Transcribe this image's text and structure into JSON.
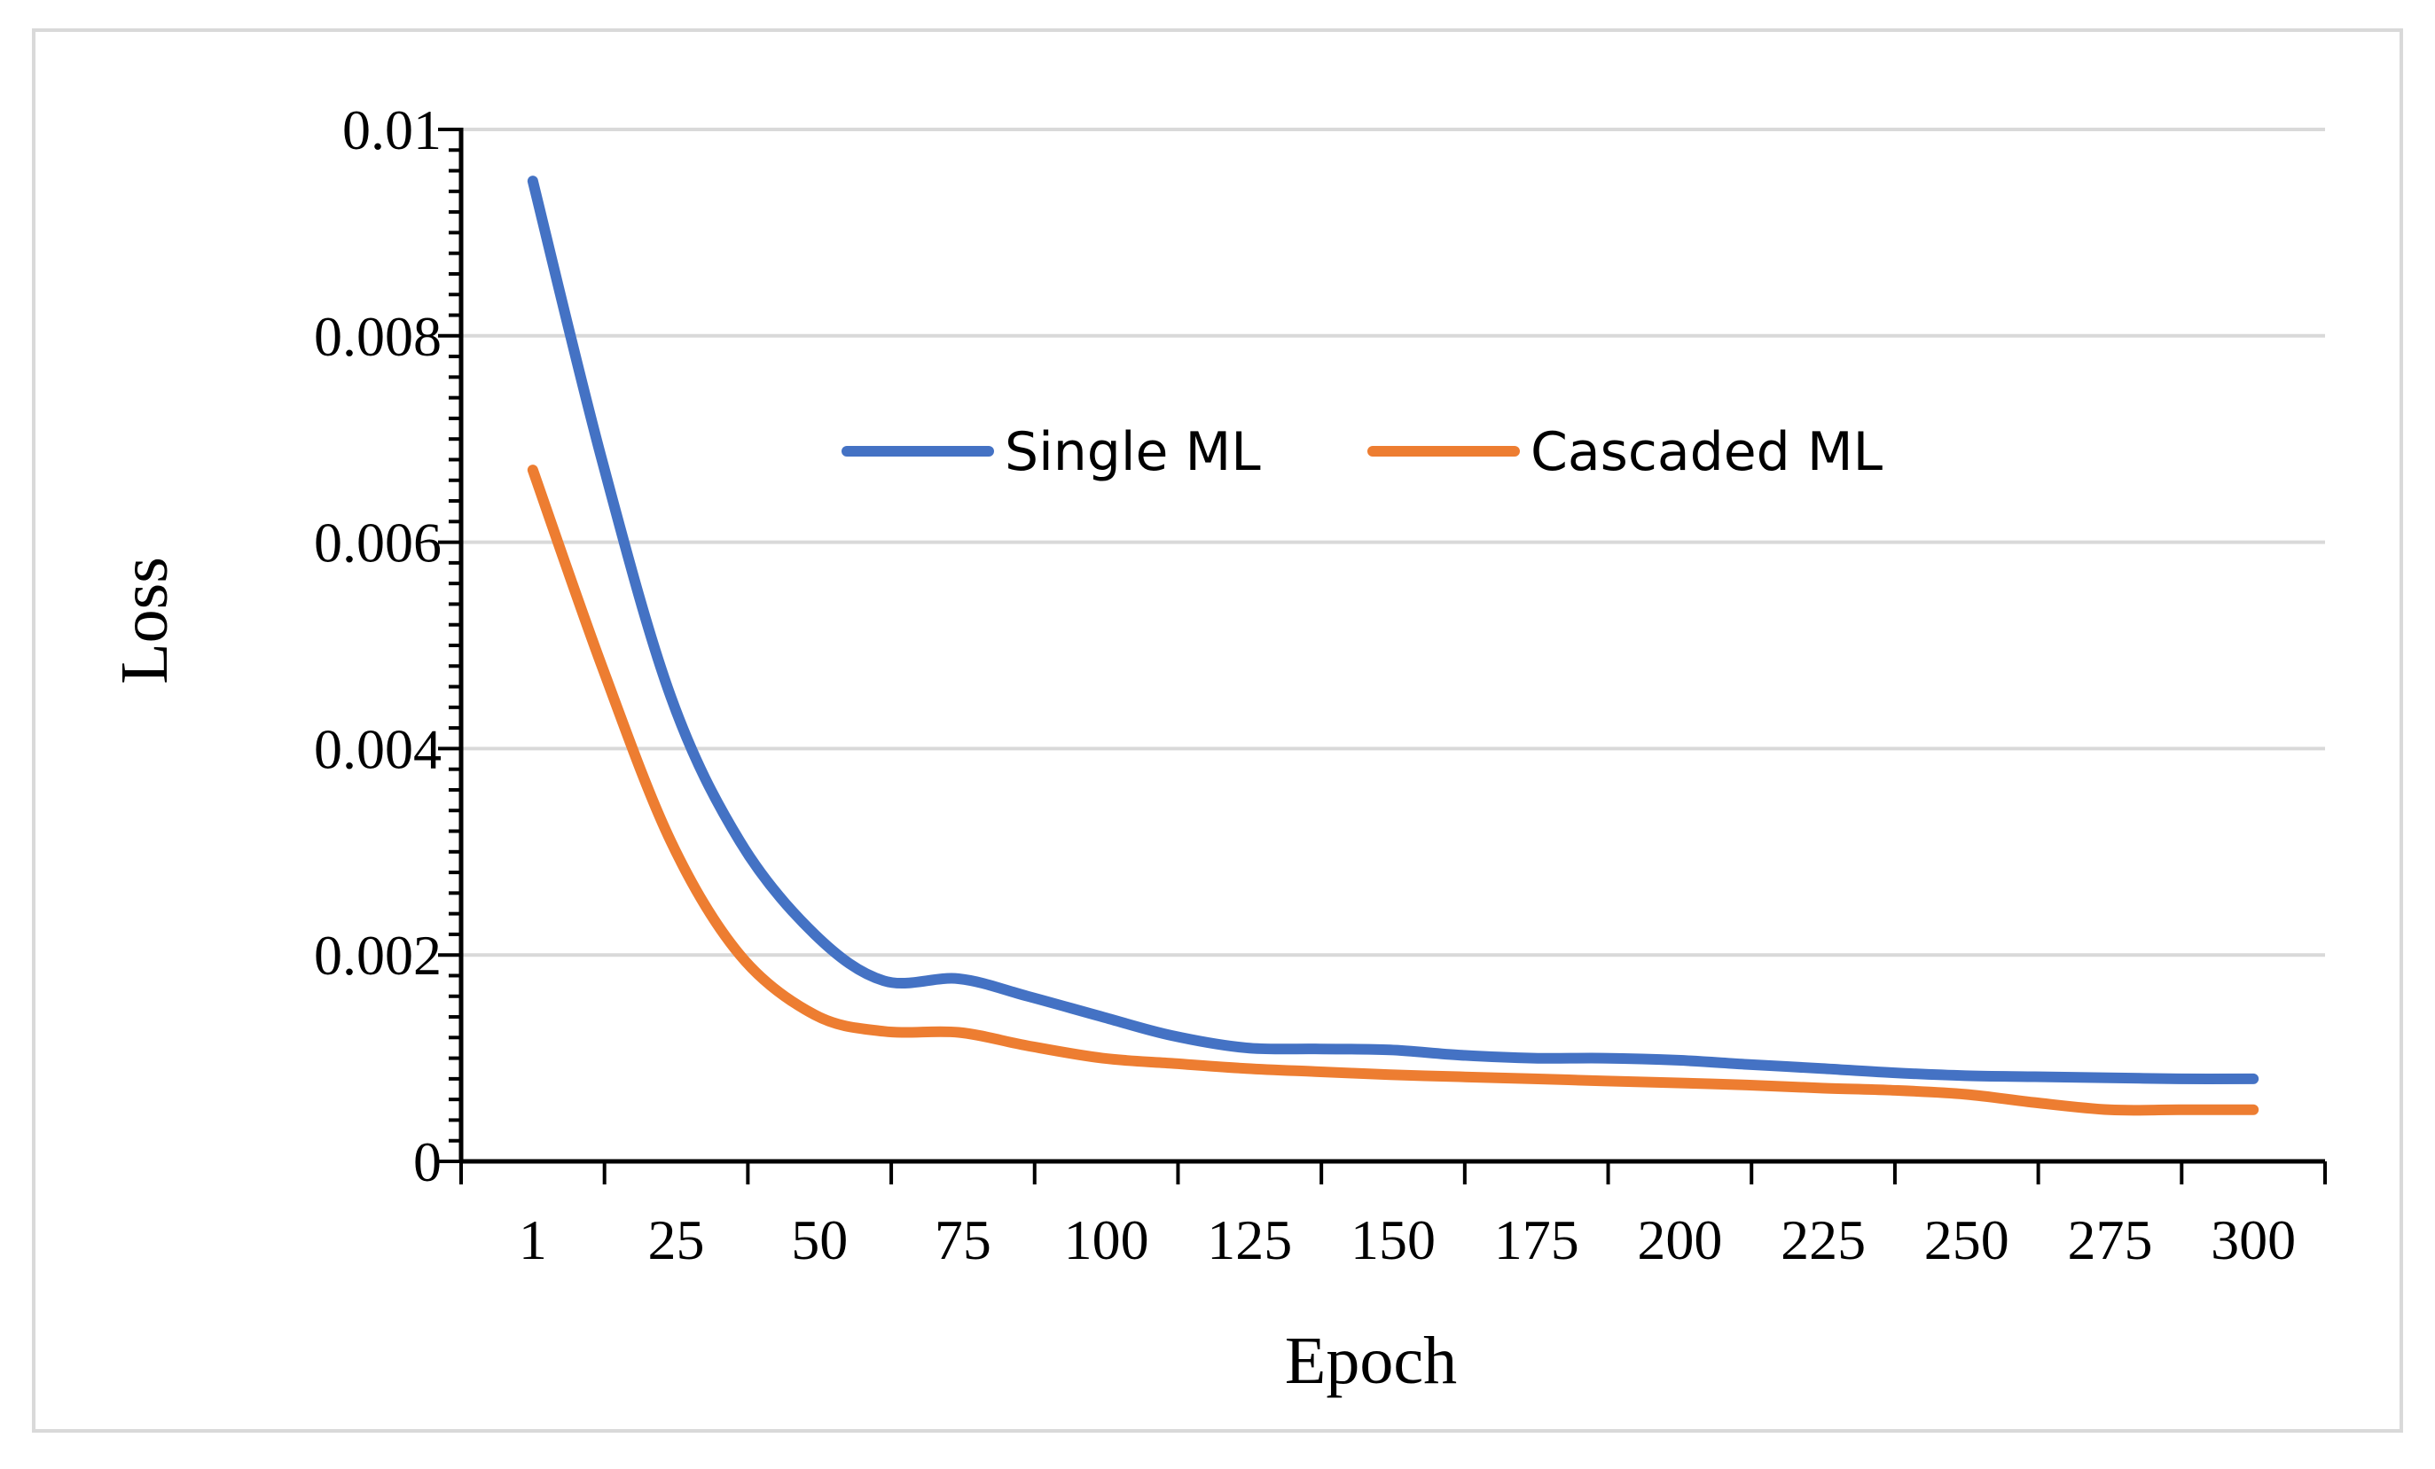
{
  "chart_data": {
    "type": "line",
    "title": "",
    "xlabel": "Epoch",
    "ylabel": "Loss",
    "ylim": [
      0,
      0.01
    ],
    "y_ticks": [
      0,
      0.002,
      0.004,
      0.006,
      0.008,
      0.01
    ],
    "y_tick_labels": [
      "0",
      "0.002",
      "0.004",
      "0.006",
      "0.008",
      "0.01"
    ],
    "x_ticks": [
      1,
      25,
      50,
      75,
      100,
      125,
      150,
      175,
      200,
      225,
      250,
      275,
      300
    ],
    "x_tick_labels": [
      "1",
      "25",
      "50",
      "75",
      "100",
      "125",
      "150",
      "175",
      "200",
      "225",
      "250",
      "275",
      "300"
    ],
    "grid": true,
    "legend_position": "top-center",
    "series": [
      {
        "name": "Single ML",
        "color": "#4472c4",
        "x": [
          1,
          13,
          25,
          37,
          50,
          62,
          75,
          87,
          100,
          112,
          125,
          137,
          150,
          162,
          175,
          187,
          200,
          212,
          225,
          237,
          250,
          262,
          275,
          287,
          300
        ],
        "values": [
          0.0095,
          0.0068,
          0.0045,
          0.0031,
          0.0022,
          0.00175,
          0.00177,
          0.0016,
          0.0014,
          0.00122,
          0.0011,
          0.00109,
          0.00108,
          0.00103,
          0.001,
          0.001,
          0.00098,
          0.00094,
          0.0009,
          0.00086,
          0.00083,
          0.00082,
          0.00081,
          0.0008,
          0.0008
        ]
      },
      {
        "name": "Cascaded ML",
        "color": "#ed7d31",
        "x": [
          1,
          13,
          25,
          37,
          50,
          62,
          75,
          87,
          100,
          112,
          125,
          137,
          150,
          162,
          175,
          187,
          200,
          212,
          225,
          237,
          250,
          262,
          275,
          287,
          300
        ],
        "values": [
          0.0067,
          0.0048,
          0.0031,
          0.002,
          0.00142,
          0.00126,
          0.00125,
          0.00112,
          0.001,
          0.00095,
          0.0009,
          0.00087,
          0.00084,
          0.00082,
          0.0008,
          0.00078,
          0.00076,
          0.00074,
          0.00071,
          0.00069,
          0.00065,
          0.00057,
          0.0005,
          0.0005,
          0.0005
        ]
      }
    ]
  }
}
